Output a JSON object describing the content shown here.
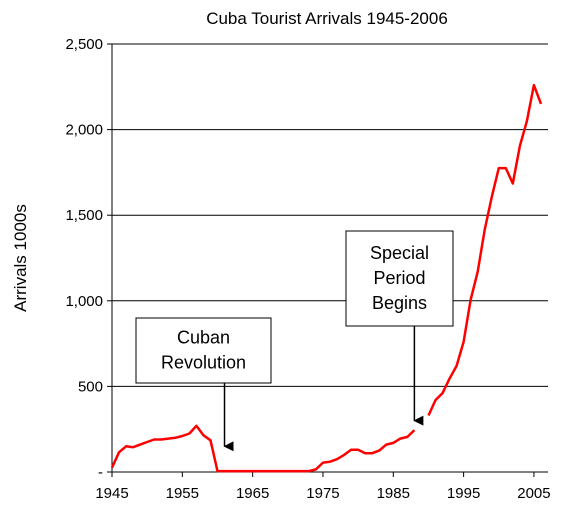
{
  "chart_data": {
    "type": "line",
    "title": "Cuba Tourist Arrivals 1945-2006",
    "xlabel": "",
    "ylabel": "Arrivals 1000s",
    "xlim": [
      1945,
      2007
    ],
    "ylim": [
      0,
      2500
    ],
    "grid": "horizontal",
    "x_ticks": [
      1945,
      1955,
      1965,
      1975,
      1985,
      1995,
      2005
    ],
    "y_ticks": [
      {
        "value": 0,
        "label": "-"
      },
      {
        "value": 500,
        "label": "500"
      },
      {
        "value": 1000,
        "label": "1,000"
      },
      {
        "value": 1500,
        "label": "1,500"
      },
      {
        "value": 2000,
        "label": "2,000"
      },
      {
        "value": 2500,
        "label": "2,500"
      }
    ],
    "line_color": "#ff0000",
    "series": [
      {
        "segments": [
          [
            [
              1945,
              25
            ],
            [
              1946,
              115
            ],
            [
              1947,
              150
            ],
            [
              1948,
              145
            ],
            [
              1949,
              160
            ],
            [
              1950,
              175
            ],
            [
              1951,
              190
            ],
            [
              1952,
              190
            ],
            [
              1953,
              195
            ],
            [
              1954,
              200
            ],
            [
              1955,
              210
            ],
            [
              1956,
              225
            ],
            [
              1957,
              270
            ],
            [
              1958,
              215
            ],
            [
              1959,
              185
            ],
            [
              1960,
              5
            ],
            [
              1961,
              5
            ],
            [
              1962,
              5
            ],
            [
              1963,
              5
            ],
            [
              1964,
              5
            ],
            [
              1965,
              5
            ],
            [
              1966,
              5
            ],
            [
              1967,
              5
            ],
            [
              1968,
              5
            ],
            [
              1969,
              5
            ],
            [
              1970,
              5
            ],
            [
              1971,
              5
            ],
            [
              1972,
              5
            ],
            [
              1973,
              5
            ],
            [
              1974,
              15
            ],
            [
              1975,
              55
            ],
            [
              1976,
              60
            ],
            [
              1977,
              75
            ],
            [
              1978,
              100
            ],
            [
              1979,
              130
            ],
            [
              1980,
              130
            ],
            [
              1981,
              110
            ],
            [
              1982,
              110
            ],
            [
              1983,
              125
            ],
            [
              1984,
              160
            ],
            [
              1985,
              170
            ],
            [
              1986,
              195
            ],
            [
              1987,
              205
            ],
            [
              1988,
              245
            ]
          ],
          [
            [
              1990,
              330
            ],
            [
              1991,
              420
            ],
            [
              1992,
              460
            ],
            [
              1993,
              545
            ],
            [
              1994,
              620
            ],
            [
              1995,
              760
            ],
            [
              1996,
              1005
            ],
            [
              1997,
              1170
            ],
            [
              1998,
              1415
            ],
            [
              1999,
              1605
            ],
            [
              2000,
              1775
            ],
            [
              2001,
              1775
            ],
            [
              2002,
              1685
            ],
            [
              2003,
              1905
            ],
            [
              2004,
              2050
            ],
            [
              2005,
              2260
            ],
            [
              2006,
              2150
            ]
          ]
        ]
      }
    ],
    "annotations": [
      {
        "lines": [
          "Cuban",
          "Revolution"
        ],
        "arrow_x": 1961,
        "arrow_to_y": 150
      },
      {
        "lines": [
          "Special",
          "Period",
          "Begins"
        ],
        "arrow_x": 1988,
        "arrow_to_y": 300
      }
    ]
  }
}
